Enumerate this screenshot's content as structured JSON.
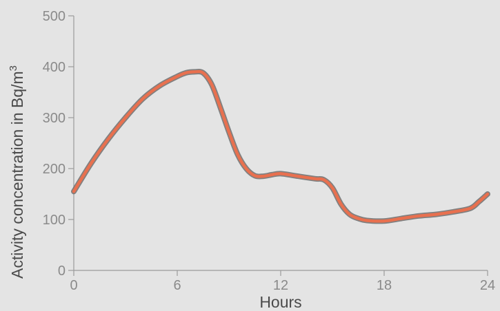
{
  "chart_data": {
    "type": "line",
    "title": "",
    "xlabel": "Hours",
    "ylabel_main": "Activity concentration in Bq/m",
    "ylabel_sup": "3",
    "xlim": [
      0,
      24
    ],
    "ylim": [
      0,
      500
    ],
    "x_ticks": [
      0,
      6,
      12,
      18,
      24
    ],
    "y_ticks": [
      0,
      100,
      200,
      300,
      400,
      500
    ],
    "grid": false,
    "legend": "none",
    "line_color": "#e8704f",
    "line_shadow_color": "#6e6e6e",
    "series": [
      {
        "x": [
          0,
          1,
          2,
          3,
          4,
          5,
          6,
          6.5,
          7,
          7.5,
          8,
          8.5,
          9,
          9.5,
          10,
          10.5,
          11,
          11.5,
          12,
          13,
          14,
          14.5,
          15,
          15.5,
          16,
          16.5,
          17,
          18,
          19,
          20,
          21,
          22,
          23,
          23.5,
          24
        ],
        "y": [
          155,
          210,
          258,
          300,
          337,
          363,
          381,
          388,
          390,
          388,
          365,
          320,
          272,
          228,
          200,
          186,
          185,
          188,
          190,
          185,
          180,
          178,
          162,
          130,
          110,
          102,
          98,
          97,
          102,
          107,
          110,
          115,
          122,
          135,
          150
        ]
      }
    ]
  }
}
